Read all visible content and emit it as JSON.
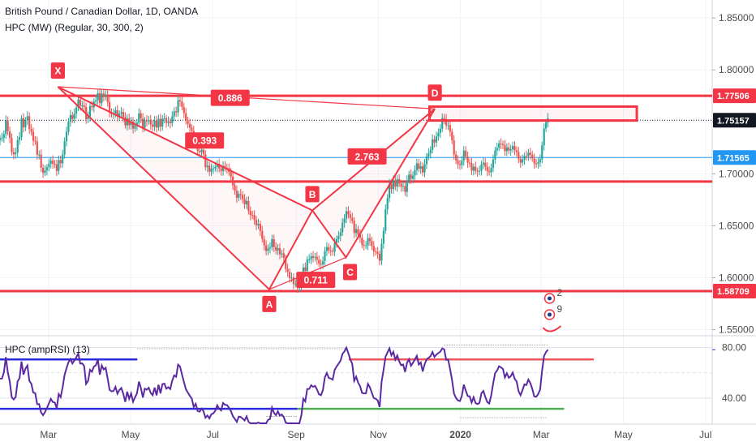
{
  "header": {
    "symbol_line": "British Pound / Canadian Dollar, 1D, OANDA",
    "indicator_line": "HPC (MW) (Regular, 30, 300, 2)",
    "oscillator_line": "HPC (ampRSI) (13)"
  },
  "colors": {
    "up": "#26a69a",
    "down": "#ef5350",
    "pattern": "#f23645",
    "hline": "#f23645",
    "blue_level": "#2196f3",
    "rsi": "#5b2aa0",
    "rsi_upper": "#2b2be0",
    "rsi_lower": "#2b2be0",
    "rsi_red": "#f2545b",
    "rsi_green": "#4caf50"
  },
  "chart_data": {
    "type": "candlestick",
    "title": "British Pound / Canadian Dollar, 1D, OANDA",
    "y_ticks": [
      "1.85000",
      "1.80000",
      "1.75000",
      "1.70000",
      "1.65000",
      "1.60000",
      "1.55000"
    ],
    "y_tick_values": [
      1.85,
      1.8,
      1.75,
      1.7,
      1.65,
      1.6,
      1.55
    ],
    "ylim": [
      1.5457,
      1.8673
    ],
    "x_ticks": [
      "Mar",
      "May",
      "Jul",
      "Sep",
      "Nov",
      "2020",
      "Mar",
      "May",
      "Jul"
    ],
    "x_tick_dates": [
      "2019-03-01",
      "2019-05-01",
      "2019-07-01",
      "2019-09-01",
      "2019-11-01",
      "2020-01-01",
      "2020-03-01",
      "2020-05-01",
      "2020-07-01"
    ],
    "x_range": [
      "2019-01-24",
      "2020-07-06"
    ],
    "price_labels": [
      {
        "value": 1.77506,
        "text": "1.77506",
        "style": "red"
      },
      {
        "value": 1.75157,
        "text": "1.75157",
        "style": "dark"
      },
      {
        "value": 1.71565,
        "text": "1.71565",
        "style": "blue"
      },
      {
        "value": 1.58709,
        "text": "1.58709",
        "style": "red"
      }
    ],
    "horizontal_lines": [
      {
        "value": 1.77506,
        "kind": "red"
      },
      {
        "value": 1.6925,
        "kind": "red"
      },
      {
        "value": 1.58709,
        "kind": "red"
      },
      {
        "value": 1.71565,
        "kind": "blue"
      },
      {
        "value": 1.75157,
        "kind": "dotted"
      }
    ],
    "harmonic_pattern": {
      "points": [
        {
          "label": "X",
          "date": "2019-03-08",
          "value": 1.7838
        },
        {
          "label": "A",
          "date": "2019-08-12",
          "value": 1.5887
        },
        {
          "label": "B",
          "date": "2019-09-13",
          "value": 1.6648
        },
        {
          "label": "C",
          "date": "2019-10-08",
          "value": 1.6195
        },
        {
          "label": "D",
          "date": "2019-12-13",
          "value": 1.7625
        }
      ],
      "ratios": [
        {
          "text": "0.393",
          "from": "X",
          "to": "B"
        },
        {
          "text": "0.711",
          "from": "A",
          "to": "C"
        },
        {
          "text": "2.763",
          "from": "B",
          "to": "D"
        },
        {
          "text": "0.886",
          "from": "X",
          "to": "D"
        }
      ]
    },
    "zone_box": {
      "from": "2019-12-09",
      "to": "2020-05-11",
      "high": 1.7647,
      "low": 1.7513
    },
    "candles_close": [
      1.7344,
      1.7345,
      1.7382,
      1.7514,
      1.7409,
      1.7345,
      1.7209,
      1.7188,
      1.7204,
      1.7326,
      1.7354,
      1.7534,
      1.7448,
      1.7515,
      1.7554,
      1.7431,
      1.7405,
      1.7318,
      1.7312,
      1.7183,
      1.7185,
      1.7058,
      1.7009,
      1.7033,
      1.7063,
      1.7096,
      1.7128,
      1.7096,
      1.7091,
      1.7028,
      1.7132,
      1.7101,
      1.7185,
      1.7313,
      1.7404,
      1.7502,
      1.7565,
      1.7529,
      1.7579,
      1.7638,
      1.7714,
      1.7657,
      1.7658,
      1.7643,
      1.7526,
      1.7551,
      1.7652,
      1.764,
      1.7695,
      1.7708,
      1.7776,
      1.7681,
      1.7772,
      1.7746,
      1.7762,
      1.769,
      1.759,
      1.7577,
      1.7579,
      1.7611,
      1.7552,
      1.7579,
      1.7594,
      1.7545,
      1.7466,
      1.7534,
      1.7469,
      1.7505,
      1.7435,
      1.7466,
      1.7492,
      1.7582,
      1.7534,
      1.7445,
      1.7514,
      1.7505,
      1.7519,
      1.7474,
      1.7453,
      1.7511,
      1.7445,
      1.7529,
      1.7455,
      1.7531,
      1.7535,
      1.7491,
      1.7503,
      1.7488,
      1.7553,
      1.7601,
      1.7591,
      1.7709,
      1.7697,
      1.7643,
      1.7584,
      1.7516,
      1.7481,
      1.7445,
      1.7413,
      1.7296,
      1.7326,
      1.7219,
      1.7208,
      1.7232,
      1.7188,
      1.7064,
      1.7077,
      1.7021,
      1.7048,
      1.7052,
      1.7066,
      1.7097,
      1.7052,
      1.7027,
      1.7076,
      1.7056,
      1.7053,
      1.7017,
      1.6972,
      1.6889,
      1.6837,
      1.6769,
      1.6805,
      1.6797,
      1.6756,
      1.6707,
      1.6739,
      1.6641,
      1.6603,
      1.6602,
      1.6556,
      1.6505,
      1.6518,
      1.6449,
      1.6372,
      1.631,
      1.6258,
      1.6283,
      1.6293,
      1.6371,
      1.6296,
      1.6262,
      1.6284,
      1.6225,
      1.6234,
      1.6191,
      1.6085,
      1.6055,
      1.5996,
      1.6001,
      1.5939,
      1.5939,
      1.5902,
      1.5911,
      1.5972,
      1.6098,
      1.6066,
      1.6176,
      1.6177,
      1.6208,
      1.6193,
      1.6201,
      1.6172,
      1.6134,
      1.6126,
      1.6159,
      1.6257,
      1.6295,
      1.6262,
      1.6258,
      1.625,
      1.6335,
      1.6371,
      1.6401,
      1.6437,
      1.6528,
      1.6568,
      1.664,
      1.6609,
      1.6576,
      1.6549,
      1.6431,
      1.6468,
      1.6416,
      1.6384,
      1.6317,
      1.6311,
      1.6312,
      1.6381,
      1.6353,
      1.6305,
      1.6253,
      1.6246,
      1.623,
      1.6164,
      1.6327,
      1.6452,
      1.6657,
      1.6766,
      1.6904,
      1.6854,
      1.6939,
      1.6877,
      1.6948,
      1.6906,
      1.6875,
      1.6881,
      1.6826,
      1.6935,
      1.6993,
      1.6951,
      1.6982,
      1.7036,
      1.7101,
      1.7049,
      1.7073,
      1.7013,
      1.7093,
      1.7166,
      1.7196,
      1.7231,
      1.7331,
      1.7302,
      1.7359,
      1.7394,
      1.7435,
      1.7536,
      1.7527,
      1.7466,
      1.7468,
      1.7405,
      1.7322,
      1.7186,
      1.7129,
      1.7094,
      1.7084,
      1.7126,
      1.7223,
      1.7166,
      1.7107,
      1.7103,
      1.7031,
      1.7068,
      1.7029,
      1.7021,
      1.7028,
      1.709,
      1.7107,
      1.7066,
      1.7027,
      1.7015,
      1.7057,
      1.7137,
      1.7225,
      1.7249,
      1.7293,
      1.7286,
      1.7276,
      1.7218,
      1.7255,
      1.7224,
      1.7236,
      1.7267,
      1.7227,
      1.721,
      1.7142,
      1.7108,
      1.7137,
      1.7172,
      1.7168,
      1.7203,
      1.7182,
      1.7149,
      1.7099,
      1.7096,
      1.7111,
      1.714,
      1.7274,
      1.7436,
      1.7496,
      1.7536
    ],
    "oscillator": {
      "label": "HPC (ampRSI) (13)",
      "y_ticks": [
        "80.00",
        "40.00"
      ],
      "y_tick_values": [
        80,
        40
      ],
      "ylim": [
        20,
        88
      ],
      "values": [
        55.3,
        55.4,
        60.3,
        72.4,
        60.2,
        52.9,
        40.6,
        38.9,
        40.8,
        53.2,
        55.7,
        68.9,
        58.5,
        63.2,
        65.7,
        53.6,
        51.3,
        44.3,
        43.8,
        35.1,
        35.2,
        28.5,
        26.4,
        28.9,
        32.2,
        35.8,
        39.3,
        36.8,
        36.4,
        32.0,
        43.1,
        40.7,
        48.5,
        58.2,
        63.6,
        68.3,
        70.8,
        67.3,
        69.7,
        72.3,
        75.3,
        67.3,
        67.4,
        65.3,
        51.2,
        53.5,
        62.3,
        60.8,
        64.9,
        65.9,
        70.5,
        58.5,
        65.7,
        62.6,
        63.9,
        55.6,
        46.4,
        45.3,
        45.5,
        48.8,
        43.5,
        46.3,
        47.9,
        43.3,
        37.0,
        45.0,
        39.4,
        43.6,
        37.0,
        40.6,
        43.7,
        53.0,
        47.9,
        40.4,
        47.4,
        46.6,
        48.1,
        44.1,
        42.2,
        48.2,
        42.1,
        50.5,
        43.7,
        51.0,
        51.4,
        47.4,
        48.5,
        47.1,
        53.7,
        57.9,
        56.8,
        66.4,
        64.9,
        58.5,
        52.6,
        46.9,
        44.3,
        41.7,
        39.6,
        32.9,
        35.4,
        29.7,
        29.2,
        31.6,
        29.5,
        24.4,
        26.2,
        23.9,
        27.2,
        27.8,
        29.9,
        34.2,
        31.6,
        30.2,
        36.1,
        34.6,
        34.4,
        32.3,
        29.7,
        25.6,
        23.5,
        21.1,
        25.3,
        25.0,
        23.7,
        22.2,
        25.4,
        21.2,
        20.0,
        20.0,
        20.0,
        20.0,
        20.6,
        20.0,
        20.0,
        20.0,
        20.0,
        22.8,
        23.4,
        32.4,
        28.2,
        26.5,
        29.4,
        26.2,
        27.0,
        25.0,
        20.5,
        20.0,
        20.0,
        20.0,
        20.0,
        20.0,
        20.0,
        20.0,
        26.4,
        39.4,
        37.3,
        47.1,
        47.2,
        50.1,
        48.8,
        49.6,
        46.7,
        42.9,
        42.2,
        46.2,
        56.4,
        59.8,
        55.9,
        55.4,
        54.5,
        62.2,
        64.9,
        67.1,
        69.5,
        74.9,
        76.8,
        79.8,
        75.4,
        70.7,
        67.0,
        53.6,
        56.9,
        52.2,
        49.4,
        44.1,
        43.6,
        43.7,
        51.2,
        48.5,
        44.2,
        40.0,
        39.4,
        38.1,
        33.0,
        52.9,
        62.2,
        72.7,
        76.1,
        79.3,
        73.7,
        76.5,
        70.3,
        73.6,
        69.0,
        65.9,
        66.5,
        60.7,
        67.9,
        70.7,
        65.5,
        67.8,
        70.6,
        73.4,
        66.5,
        68.1,
        61.0,
        66.8,
        70.5,
        71.8,
        73.1,
        76.4,
        72.5,
        74.4,
        75.5,
        76.7,
        79.2,
        78.4,
        70.2,
        70.4,
        62.9,
        54.1,
        43.5,
        40.1,
        38.1,
        37.6,
        41.7,
        50.6,
        45.9,
        41.6,
        41.3,
        36.4,
        40.6,
        36.1,
        35.2,
        36.1,
        43.8,
        45.6,
        40.8,
        36.8,
        35.7,
        42.0,
        51.4,
        59.7,
        61.7,
        65.1,
        64.2,
        63.0,
        56.3,
        59.6,
        56.0,
        57.2,
        60.1,
        55.2,
        53.1,
        45.4,
        42.2,
        46.3,
        50.8,
        50.3,
        54.6,
        51.7,
        47.2,
        41.3,
        41.0,
        43.0,
        46.7,
        61.5,
        73.2,
        76.3,
        78.2
      ],
      "levels": [
        {
          "value": 70.5,
          "color": "red",
          "from": "2019-10-10",
          "to": "2020-04-09"
        },
        {
          "value": 70.5,
          "color": "blue",
          "from": "2019-01-24",
          "to": "2019-05-06"
        },
        {
          "value": 31.5,
          "color": "blue",
          "from": "2019-01-24",
          "to": "2019-09-02"
        },
        {
          "value": 31.5,
          "color": "green",
          "from": "2019-09-02",
          "to": "2020-03-18"
        }
      ]
    }
  }
}
